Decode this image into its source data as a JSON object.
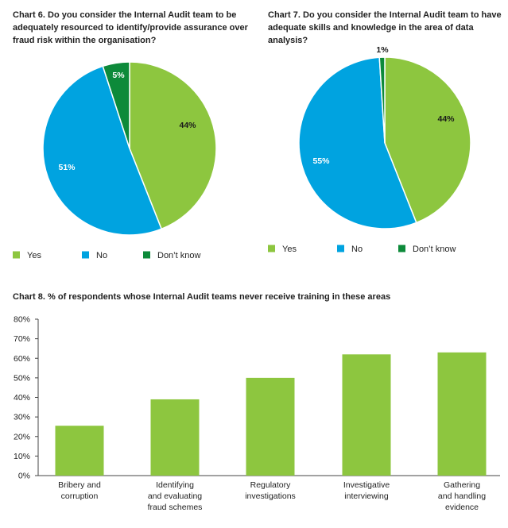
{
  "colors": {
    "yes": "#8dc63f",
    "no": "#00a3e0",
    "dont_know": "#0d8a3a",
    "bar": "#8dc63f",
    "axis": "#444444"
  },
  "chart_data": [
    {
      "type": "pie",
      "title": "Chart 6. Do you consider the Internal Audit team to be adequately resourced to identify/provide assurance over fraud risk within the organisation?",
      "categories": [
        "Yes",
        "No",
        "Don't know"
      ],
      "values": [
        44,
        51,
        5
      ],
      "value_labels": [
        "44%",
        "51%",
        "5%"
      ],
      "legend": [
        "Yes",
        "No",
        "Don’t know"
      ],
      "legend_position": "bottom"
    },
    {
      "type": "pie",
      "title": "Chart 7. Do you consider the Internal Audit team to have adequate skills and knowledge in the area of data analysis?",
      "categories": [
        "Yes",
        "No",
        "Don't know"
      ],
      "values": [
        44,
        55,
        1
      ],
      "value_labels": [
        "44%",
        "55%",
        "1%"
      ],
      "legend": [
        "Yes",
        "No",
        "Don’t know"
      ],
      "legend_position": "bottom"
    },
    {
      "type": "bar",
      "title": "Chart 8. % of respondents whose Internal Audit teams never receive training in these areas",
      "categories": [
        [
          "Bribery and",
          "corruption"
        ],
        [
          "Identifying",
          "and evaluating",
          "fraud schemes"
        ],
        [
          "Regulatory",
          "investigations"
        ],
        [
          "Investigative",
          "interviewing"
        ],
        [
          "Gathering",
          "and handling",
          "evidence"
        ]
      ],
      "values": [
        25.5,
        39,
        50,
        62,
        63
      ],
      "ylim": [
        0,
        80
      ],
      "yticks": [
        "0%",
        "10%",
        "20%",
        "30%",
        "40%",
        "50%",
        "60%",
        "70%",
        "80%"
      ],
      "grid": false
    }
  ]
}
